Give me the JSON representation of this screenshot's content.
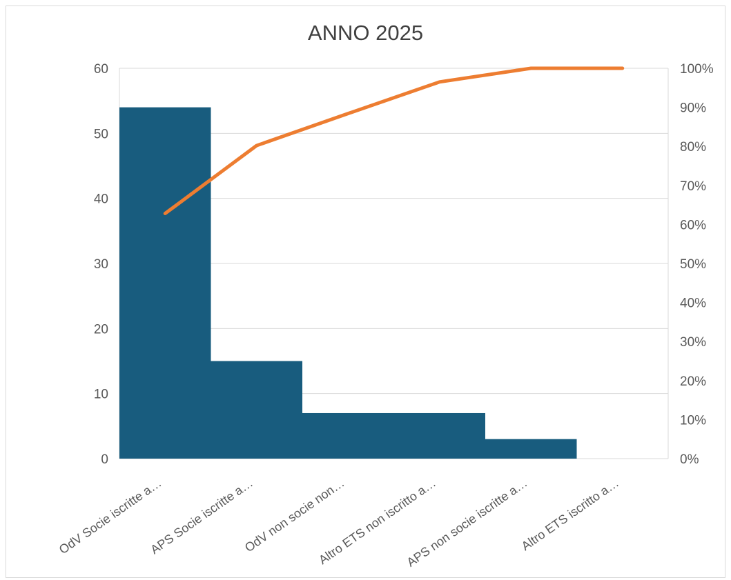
{
  "chart_data": {
    "type": "bar",
    "title": "ANNO 2025",
    "categories": [
      "OdV Socie iscritte a…",
      "APS Socie iscritte a…",
      "OdV non socie non…",
      "Altro ETS non iscritto a…",
      "APS non socie iscritte a…",
      "Altro ETS iscritto a…"
    ],
    "bar_values": [
      54,
      15,
      7,
      7,
      3,
      0
    ],
    "cumulative_percent": [
      62.8,
      80.2,
      88.4,
      96.5,
      100,
      100
    ],
    "left_axis": {
      "ylim": [
        0,
        60
      ],
      "ticks": [
        "0",
        "10",
        "20",
        "30",
        "40",
        "50",
        "60"
      ]
    },
    "right_axis": {
      "ylim": [
        0,
        100
      ],
      "ticks": [
        "0%",
        "10%",
        "20%",
        "30%",
        "40%",
        "50%",
        "60%",
        "70%",
        "80%",
        "90%",
        "100%"
      ]
    },
    "grid": true,
    "colors": {
      "bar": "#185C7E",
      "line": "#ED7D31",
      "grid": "#d9d9d9",
      "text": "#595959"
    }
  }
}
